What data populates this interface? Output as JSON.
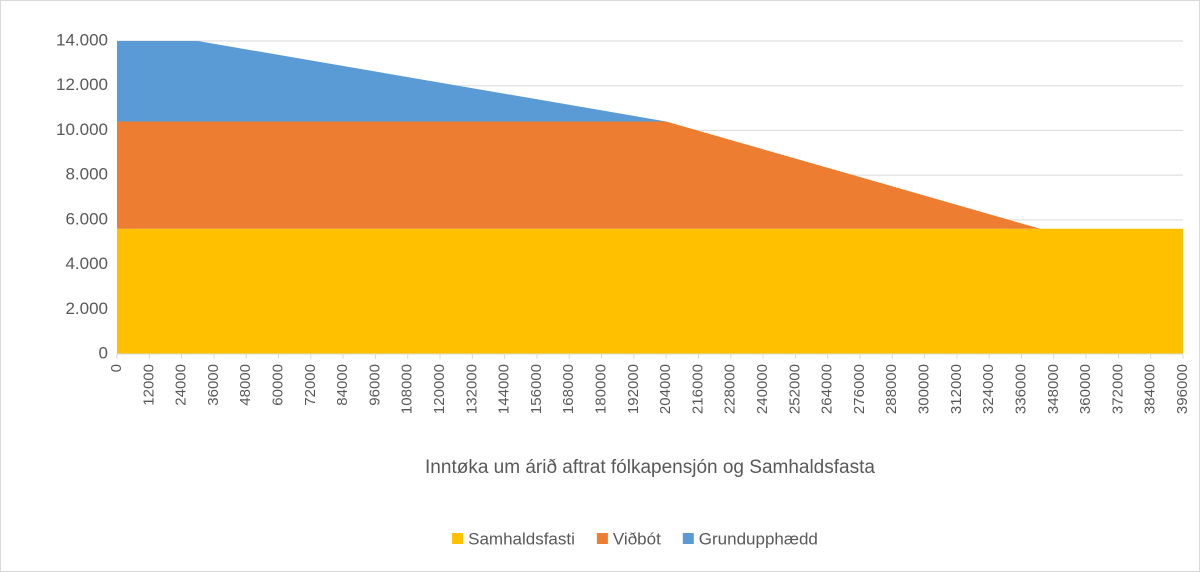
{
  "chart_data": {
    "type": "area",
    "x_label": "Inntøka um árið aftrat fólkapensjón og Samhaldsfasta",
    "x": [
      0,
      30000,
      204000,
      343000,
      396000
    ],
    "series": [
      {
        "name": "Samhaldsfasti",
        "color": "#ffc000",
        "values": [
          5600,
          5600,
          5600,
          5600,
          5600
        ]
      },
      {
        "name": "Viðbót",
        "color": "#ed7d31",
        "values": [
          4800,
          4800,
          4800,
          0,
          0
        ]
      },
      {
        "name": "Grundupphædd",
        "color": "#5b9bd5",
        "values": [
          3600,
          3600,
          0,
          0,
          0
        ]
      }
    ],
    "stacked": true,
    "xlim": [
      0,
      396000
    ],
    "xticks": [
      0,
      12000,
      24000,
      36000,
      48000,
      60000,
      72000,
      84000,
      96000,
      108000,
      120000,
      132000,
      144000,
      156000,
      168000,
      180000,
      192000,
      204000,
      216000,
      228000,
      240000,
      252000,
      264000,
      276000,
      288000,
      300000,
      312000,
      324000,
      336000,
      348000,
      360000,
      372000,
      384000,
      396000
    ],
    "ylim": [
      0,
      14000
    ],
    "yticks": [
      0,
      {
        "value": 2000,
        "label": "2.000"
      },
      {
        "value": 4000,
        "label": "4.000"
      },
      {
        "value": 6000,
        "label": "6.000"
      },
      {
        "value": 8000,
        "label": "8.000"
      },
      {
        "value": 10000,
        "label": "10.000"
      },
      {
        "value": 12000,
        "label": "12.000"
      },
      {
        "value": 14000,
        "label": "14.000"
      }
    ],
    "grid": true,
    "legend": "bottom"
  }
}
